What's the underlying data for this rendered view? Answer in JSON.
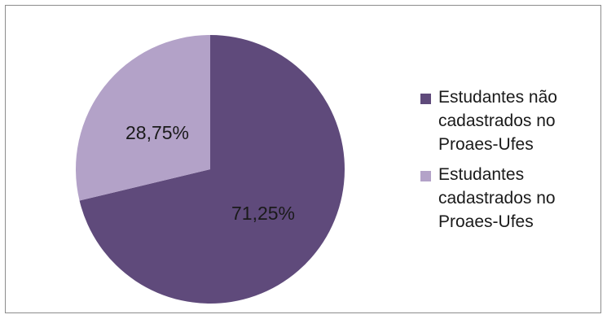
{
  "chart_data": {
    "type": "pie",
    "slices": [
      {
        "label": "Estudantes não cadastrados no Proaes-Ufes",
        "value": 71.25,
        "display": "71,25%",
        "color": "#5f4a7b"
      },
      {
        "label": "Estudantes cadastrados no Proaes-Ufes",
        "value": 28.75,
        "display": "28,75%",
        "color": "#b3a2c8"
      }
    ],
    "legend_position": "right"
  }
}
